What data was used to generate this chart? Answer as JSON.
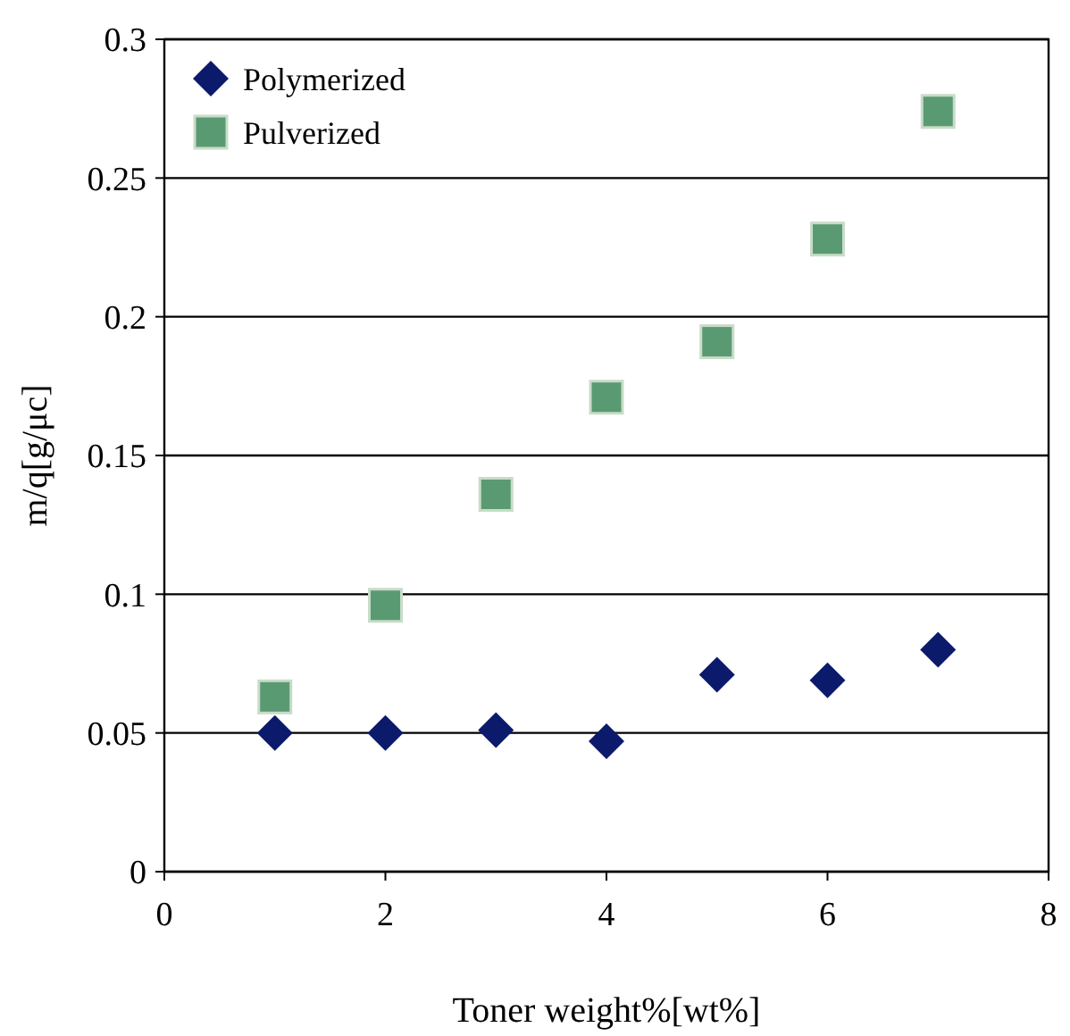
{
  "chart_data": {
    "type": "scatter",
    "xlabel": "Toner weight%[wt%]",
    "ylabel": "m/q[g/μc]",
    "x": [
      1,
      2,
      3,
      4,
      5,
      6,
      7
    ],
    "series": [
      {
        "name": "Polymerized",
        "color": "#0c1a6b",
        "marker": "diamond",
        "values": [
          0.05,
          0.05,
          0.051,
          0.047,
          0.071,
          0.069,
          0.08
        ]
      },
      {
        "name": "Pulverized",
        "color": "#5a9a72",
        "marker": "square",
        "values": [
          0.063,
          0.096,
          0.136,
          0.171,
          0.191,
          0.228,
          0.274
        ]
      }
    ],
    "xlim": [
      0,
      8
    ],
    "xticks": [
      0,
      2,
      4,
      6,
      8
    ],
    "ylim": [
      0,
      0.3
    ],
    "yticks": [
      0,
      0.05,
      0.1,
      0.15,
      0.2,
      0.25,
      0.3
    ],
    "grid": "y",
    "legend": "top left"
  }
}
